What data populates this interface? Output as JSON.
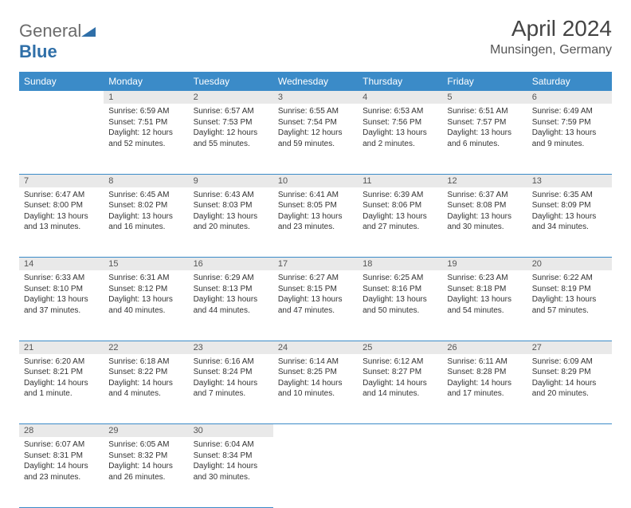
{
  "brand": {
    "part1": "General",
    "part2": "Blue"
  },
  "title": "April 2024",
  "location": "Munsingen, Germany",
  "colors": {
    "header_bg": "#3b8bc8",
    "header_text": "#ffffff",
    "daynum_bg": "#e9e9e9",
    "border": "#3b8bc8",
    "logo_gray": "#6b6b6b",
    "logo_blue": "#2f6fa8"
  },
  "weekdays": [
    "Sunday",
    "Monday",
    "Tuesday",
    "Wednesday",
    "Thursday",
    "Friday",
    "Saturday"
  ],
  "weeks": [
    {
      "nums": [
        "",
        "1",
        "2",
        "3",
        "4",
        "5",
        "6"
      ],
      "cells": [
        null,
        {
          "sunrise": "6:59 AM",
          "sunset": "7:51 PM",
          "daylight": "12 hours and 52 minutes."
        },
        {
          "sunrise": "6:57 AM",
          "sunset": "7:53 PM",
          "daylight": "12 hours and 55 minutes."
        },
        {
          "sunrise": "6:55 AM",
          "sunset": "7:54 PM",
          "daylight": "12 hours and 59 minutes."
        },
        {
          "sunrise": "6:53 AM",
          "sunset": "7:56 PM",
          "daylight": "13 hours and 2 minutes."
        },
        {
          "sunrise": "6:51 AM",
          "sunset": "7:57 PM",
          "daylight": "13 hours and 6 minutes."
        },
        {
          "sunrise": "6:49 AM",
          "sunset": "7:59 PM",
          "daylight": "13 hours and 9 minutes."
        }
      ]
    },
    {
      "nums": [
        "7",
        "8",
        "9",
        "10",
        "11",
        "12",
        "13"
      ],
      "cells": [
        {
          "sunrise": "6:47 AM",
          "sunset": "8:00 PM",
          "daylight": "13 hours and 13 minutes."
        },
        {
          "sunrise": "6:45 AM",
          "sunset": "8:02 PM",
          "daylight": "13 hours and 16 minutes."
        },
        {
          "sunrise": "6:43 AM",
          "sunset": "8:03 PM",
          "daylight": "13 hours and 20 minutes."
        },
        {
          "sunrise": "6:41 AM",
          "sunset": "8:05 PM",
          "daylight": "13 hours and 23 minutes."
        },
        {
          "sunrise": "6:39 AM",
          "sunset": "8:06 PM",
          "daylight": "13 hours and 27 minutes."
        },
        {
          "sunrise": "6:37 AM",
          "sunset": "8:08 PM",
          "daylight": "13 hours and 30 minutes."
        },
        {
          "sunrise": "6:35 AM",
          "sunset": "8:09 PM",
          "daylight": "13 hours and 34 minutes."
        }
      ]
    },
    {
      "nums": [
        "14",
        "15",
        "16",
        "17",
        "18",
        "19",
        "20"
      ],
      "cells": [
        {
          "sunrise": "6:33 AM",
          "sunset": "8:10 PM",
          "daylight": "13 hours and 37 minutes."
        },
        {
          "sunrise": "6:31 AM",
          "sunset": "8:12 PM",
          "daylight": "13 hours and 40 minutes."
        },
        {
          "sunrise": "6:29 AM",
          "sunset": "8:13 PM",
          "daylight": "13 hours and 44 minutes."
        },
        {
          "sunrise": "6:27 AM",
          "sunset": "8:15 PM",
          "daylight": "13 hours and 47 minutes."
        },
        {
          "sunrise": "6:25 AM",
          "sunset": "8:16 PM",
          "daylight": "13 hours and 50 minutes."
        },
        {
          "sunrise": "6:23 AM",
          "sunset": "8:18 PM",
          "daylight": "13 hours and 54 minutes."
        },
        {
          "sunrise": "6:22 AM",
          "sunset": "8:19 PM",
          "daylight": "13 hours and 57 minutes."
        }
      ]
    },
    {
      "nums": [
        "21",
        "22",
        "23",
        "24",
        "25",
        "26",
        "27"
      ],
      "cells": [
        {
          "sunrise": "6:20 AM",
          "sunset": "8:21 PM",
          "daylight": "14 hours and 1 minute."
        },
        {
          "sunrise": "6:18 AM",
          "sunset": "8:22 PM",
          "daylight": "14 hours and 4 minutes."
        },
        {
          "sunrise": "6:16 AM",
          "sunset": "8:24 PM",
          "daylight": "14 hours and 7 minutes."
        },
        {
          "sunrise": "6:14 AM",
          "sunset": "8:25 PM",
          "daylight": "14 hours and 10 minutes."
        },
        {
          "sunrise": "6:12 AM",
          "sunset": "8:27 PM",
          "daylight": "14 hours and 14 minutes."
        },
        {
          "sunrise": "6:11 AM",
          "sunset": "8:28 PM",
          "daylight": "14 hours and 17 minutes."
        },
        {
          "sunrise": "6:09 AM",
          "sunset": "8:29 PM",
          "daylight": "14 hours and 20 minutes."
        }
      ]
    },
    {
      "nums": [
        "28",
        "29",
        "30",
        "",
        "",
        "",
        ""
      ],
      "cells": [
        {
          "sunrise": "6:07 AM",
          "sunset": "8:31 PM",
          "daylight": "14 hours and 23 minutes."
        },
        {
          "sunrise": "6:05 AM",
          "sunset": "8:32 PM",
          "daylight": "14 hours and 26 minutes."
        },
        {
          "sunrise": "6:04 AM",
          "sunset": "8:34 PM",
          "daylight": "14 hours and 30 minutes."
        },
        null,
        null,
        null,
        null
      ]
    }
  ],
  "labels": {
    "sunrise": "Sunrise: ",
    "sunset": "Sunset: ",
    "daylight": "Daylight: "
  }
}
